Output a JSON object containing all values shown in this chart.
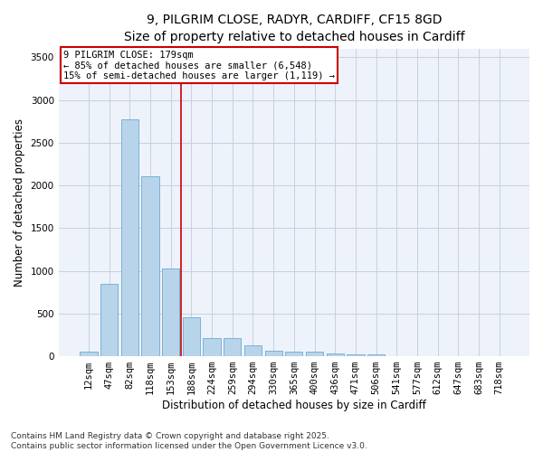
{
  "title_line1": "9, PILGRIM CLOSE, RADYR, CARDIFF, CF15 8GD",
  "title_line2": "Size of property relative to detached houses in Cardiff",
  "xlabel": "Distribution of detached houses by size in Cardiff",
  "ylabel": "Number of detached properties",
  "categories": [
    "12sqm",
    "47sqm",
    "82sqm",
    "118sqm",
    "153sqm",
    "188sqm",
    "224sqm",
    "259sqm",
    "294sqm",
    "330sqm",
    "365sqm",
    "400sqm",
    "436sqm",
    "471sqm",
    "506sqm",
    "541sqm",
    "577sqm",
    "612sqm",
    "647sqm",
    "683sqm",
    "718sqm"
  ],
  "values": [
    55,
    850,
    2770,
    2110,
    1030,
    455,
    215,
    215,
    130,
    60,
    50,
    50,
    30,
    20,
    20,
    5,
    5,
    5,
    0,
    0,
    0
  ],
  "bar_color": "#b8d4ea",
  "bar_edge_color": "#6aaad4",
  "vline_index": 4.5,
  "vline_color": "#cc0000",
  "annotation_text": "9 PILGRIM CLOSE: 179sqm\n← 85% of detached houses are smaller (6,548)\n15% of semi-detached houses are larger (1,119) →",
  "annotation_box_color": "white",
  "annotation_box_edge": "#cc0000",
  "ylim": [
    0,
    3600
  ],
  "yticks": [
    0,
    500,
    1000,
    1500,
    2000,
    2500,
    3000,
    3500
  ],
  "bg_color": "#eef2fb",
  "grid_color": "#c8cfe0",
  "footnote": "Contains HM Land Registry data © Crown copyright and database right 2025.\nContains public sector information licensed under the Open Government Licence v3.0.",
  "title_fontsize": 10,
  "subtitle_fontsize": 9.5,
  "axis_label_fontsize": 8.5,
  "tick_fontsize": 7.5,
  "annotation_fontsize": 7.5,
  "footnote_fontsize": 6.5
}
